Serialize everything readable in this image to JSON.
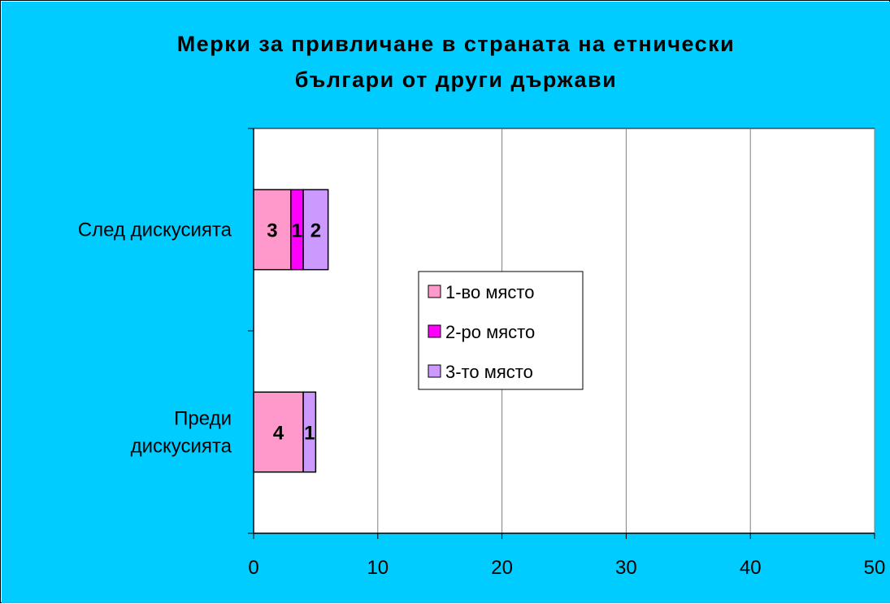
{
  "chart_data": {
    "type": "bar",
    "orientation": "horizontal",
    "stacked": true,
    "title": [
      "Мерки за привличане в страната на етнически",
      "българи от други държави"
    ],
    "categories": [
      "Преди дискусията",
      "След дискусията"
    ],
    "category_lines": [
      [
        "Преди",
        "дискусията"
      ],
      [
        "След дискусията"
      ]
    ],
    "series": [
      {
        "name": "1-во място",
        "values": [
          4,
          3
        ],
        "color": "#ff99cc"
      },
      {
        "name": "2-ро място",
        "values": [
          0,
          1
        ],
        "color": "#ff00ff"
      },
      {
        "name": "3-то място",
        "values": [
          1,
          2
        ],
        "color": "#cc99ff"
      }
    ],
    "xlim": [
      0,
      50
    ],
    "xticks": [
      "0",
      "10",
      "20",
      "30",
      "40",
      "50"
    ],
    "grid": true,
    "legend_position": "center",
    "background_color": "#00ccff",
    "plot_background": "#ffffff",
    "gridline_color": "#808080"
  }
}
